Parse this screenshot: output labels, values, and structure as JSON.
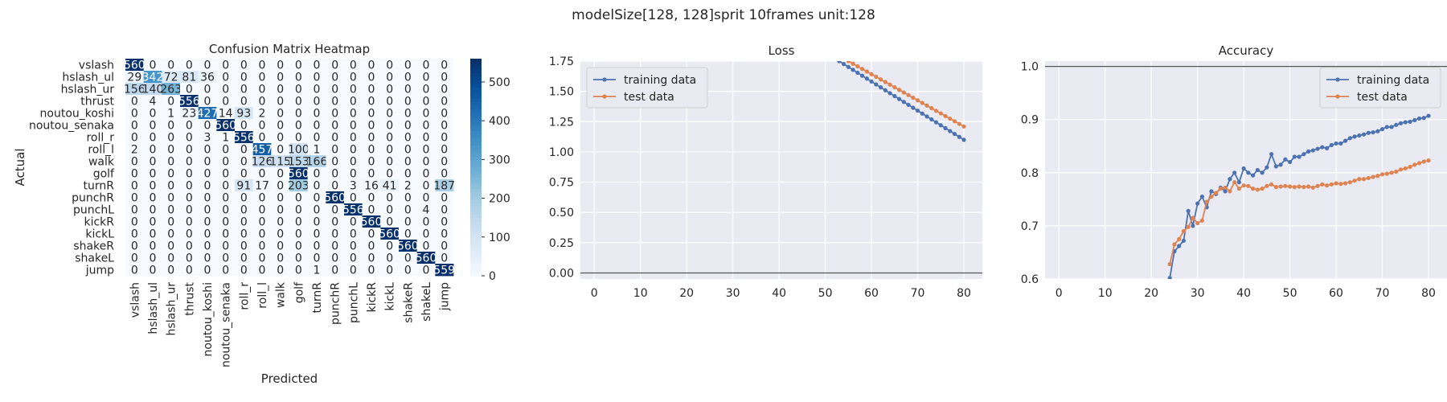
{
  "figure": {
    "suptitle": "modelSize[128, 128]sprit 10frames unit:128"
  },
  "chart_data": [
    {
      "type": "heatmap",
      "title": "Confusion Matrix Heatmap",
      "xlabel": "Predicted",
      "ylabel": "Actual",
      "labels": [
        "vslash",
        "hslash_ul",
        "hslash_ur",
        "thrust",
        "noutou_koshi",
        "noutou_senaka",
        "roll_r",
        "roll_l",
        "walk",
        "golf",
        "turnR",
        "punchR",
        "punchL",
        "kickR",
        "kickL",
        "shakeR",
        "shakeL",
        "jump"
      ],
      "matrix": [
        [
          560,
          0,
          0,
          0,
          0,
          0,
          0,
          0,
          0,
          0,
          0,
          0,
          0,
          0,
          0,
          0,
          0,
          0
        ],
        [
          29,
          342,
          72,
          81,
          36,
          0,
          0,
          0,
          0,
          0,
          0,
          0,
          0,
          0,
          0,
          0,
          0,
          0
        ],
        [
          156,
          140,
          263,
          0,
          0,
          0,
          0,
          0,
          0,
          0,
          0,
          0,
          0,
          0,
          0,
          0,
          0,
          0
        ],
        [
          0,
          4,
          0,
          556,
          0,
          0,
          0,
          0,
          0,
          0,
          0,
          0,
          0,
          0,
          0,
          0,
          0,
          0
        ],
        [
          0,
          0,
          1,
          23,
          427,
          14,
          93,
          2,
          0,
          0,
          0,
          0,
          0,
          0,
          0,
          0,
          0,
          0
        ],
        [
          0,
          0,
          0,
          0,
          0,
          560,
          0,
          0,
          0,
          0,
          0,
          0,
          0,
          0,
          0,
          0,
          0,
          0
        ],
        [
          0,
          0,
          0,
          0,
          3,
          1,
          556,
          0,
          0,
          0,
          0,
          0,
          0,
          0,
          0,
          0,
          0,
          0
        ],
        [
          2,
          0,
          0,
          0,
          0,
          0,
          0,
          457,
          0,
          100,
          1,
          0,
          0,
          0,
          0,
          0,
          0,
          0
        ],
        [
          0,
          0,
          0,
          0,
          0,
          0,
          0,
          126,
          115,
          153,
          166,
          0,
          0,
          0,
          0,
          0,
          0,
          0
        ],
        [
          0,
          0,
          0,
          0,
          0,
          0,
          0,
          0,
          0,
          560,
          0,
          0,
          0,
          0,
          0,
          0,
          0,
          0
        ],
        [
          0,
          0,
          0,
          0,
          0,
          0,
          91,
          17,
          0,
          203,
          0,
          0,
          3,
          16,
          41,
          2,
          0,
          187
        ],
        [
          0,
          0,
          0,
          0,
          0,
          0,
          0,
          0,
          0,
          0,
          0,
          560,
          0,
          0,
          0,
          0,
          0,
          0
        ],
        [
          0,
          0,
          0,
          0,
          0,
          0,
          0,
          0,
          0,
          0,
          0,
          0,
          556,
          0,
          0,
          0,
          4,
          0
        ],
        [
          0,
          0,
          0,
          0,
          0,
          0,
          0,
          0,
          0,
          0,
          0,
          0,
          0,
          560,
          0,
          0,
          0,
          0
        ],
        [
          0,
          0,
          0,
          0,
          0,
          0,
          0,
          0,
          0,
          0,
          0,
          0,
          0,
          0,
          560,
          0,
          0,
          0
        ],
        [
          0,
          0,
          0,
          0,
          0,
          0,
          0,
          0,
          0,
          0,
          0,
          0,
          0,
          0,
          0,
          560,
          0,
          0
        ],
        [
          0,
          0,
          0,
          0,
          0,
          0,
          0,
          0,
          0,
          0,
          0,
          0,
          0,
          0,
          0,
          0,
          560,
          0
        ],
        [
          0,
          0,
          0,
          0,
          0,
          0,
          0,
          0,
          0,
          0,
          1,
          0,
          0,
          0,
          0,
          0,
          0,
          559
        ]
      ],
      "colorbar": {
        "min": 0,
        "max": 560,
        "ticks": [
          0,
          100,
          200,
          300,
          400,
          500
        ]
      },
      "colormap": "Blues"
    },
    {
      "type": "line",
      "title": "Loss",
      "xlim": [
        -3,
        84
      ],
      "ylim": [
        -0.05,
        1.75
      ],
      "xticks": [
        0,
        10,
        20,
        30,
        40,
        50,
        60,
        70,
        80
      ],
      "yticks": [
        "0.00",
        "0.25",
        "0.50",
        "0.75",
        "1.00",
        "1.25",
        "1.50",
        "1.75"
      ],
      "hline": 0,
      "legend": "top-left",
      "series": [
        {
          "name": "training data",
          "color": "#4c72b0",
          "x_start": 53,
          "y_start": 1.75,
          "x_end": 80,
          "y_end": 1.1
        },
        {
          "name": "test data",
          "color": "#dd8452",
          "x_start": 55,
          "y_start": 1.75,
          "x_end": 80,
          "y_end": 1.21
        }
      ]
    },
    {
      "type": "line",
      "title": "Accuracy",
      "xlim": [
        -3,
        84
      ],
      "ylim": [
        0.6,
        1.01
      ],
      "xticks": [
        0,
        10,
        20,
        30,
        40,
        50,
        60,
        70,
        80
      ],
      "yticks": [
        "0.6",
        "0.7",
        "0.8",
        "0.9",
        "1.0"
      ],
      "hline": 1.0,
      "legend": "top-right",
      "series": [
        {
          "name": "training data",
          "color": "#4c72b0",
          "x": [
            24,
            25,
            26,
            27,
            28,
            29,
            30,
            31,
            32,
            33,
            34,
            35,
            36,
            37,
            38,
            39,
            40,
            41,
            42,
            43,
            44,
            45,
            46,
            47,
            48,
            49,
            50,
            51,
            52,
            53,
            54,
            55,
            56,
            57,
            58,
            59,
            60,
            61,
            62,
            63,
            64,
            65,
            66,
            67,
            68,
            69,
            70,
            71,
            72,
            73,
            74,
            75,
            76,
            77,
            78,
            79,
            80
          ],
          "y": [
            0.602,
            0.652,
            0.662,
            0.672,
            0.728,
            0.7,
            0.742,
            0.755,
            0.735,
            0.765,
            0.76,
            0.772,
            0.765,
            0.788,
            0.8,
            0.782,
            0.808,
            0.8,
            0.795,
            0.805,
            0.8,
            0.81,
            0.835,
            0.812,
            0.815,
            0.825,
            0.82,
            0.83,
            0.83,
            0.835,
            0.84,
            0.842,
            0.845,
            0.848,
            0.846,
            0.852,
            0.855,
            0.855,
            0.86,
            0.865,
            0.868,
            0.87,
            0.872,
            0.875,
            0.876,
            0.878,
            0.882,
            0.886,
            0.886,
            0.89,
            0.893,
            0.895,
            0.896,
            0.899,
            0.902,
            0.903,
            0.907
          ]
        },
        {
          "name": "test data",
          "color": "#dd8452",
          "x": [
            24,
            25,
            26,
            27,
            28,
            29,
            30,
            31,
            32,
            33,
            34,
            35,
            36,
            37,
            38,
            39,
            40,
            41,
            42,
            43,
            44,
            45,
            46,
            47,
            48,
            49,
            50,
            51,
            52,
            53,
            54,
            55,
            56,
            57,
            58,
            59,
            60,
            61,
            62,
            63,
            64,
            65,
            66,
            67,
            68,
            69,
            70,
            71,
            72,
            73,
            74,
            75,
            76,
            77,
            78,
            79,
            80
          ],
          "y": [
            0.628,
            0.665,
            0.675,
            0.69,
            0.698,
            0.715,
            0.705,
            0.71,
            0.745,
            0.755,
            0.762,
            0.77,
            0.772,
            0.765,
            0.782,
            0.77,
            0.776,
            0.775,
            0.77,
            0.768,
            0.77,
            0.775,
            0.778,
            0.773,
            0.774,
            0.775,
            0.774,
            0.773,
            0.774,
            0.773,
            0.774,
            0.772,
            0.775,
            0.778,
            0.776,
            0.778,
            0.78,
            0.779,
            0.78,
            0.782,
            0.785,
            0.788,
            0.788,
            0.79,
            0.792,
            0.794,
            0.797,
            0.798,
            0.8,
            0.802,
            0.806,
            0.808,
            0.811,
            0.815,
            0.818,
            0.821,
            0.823
          ]
        }
      ]
    }
  ]
}
